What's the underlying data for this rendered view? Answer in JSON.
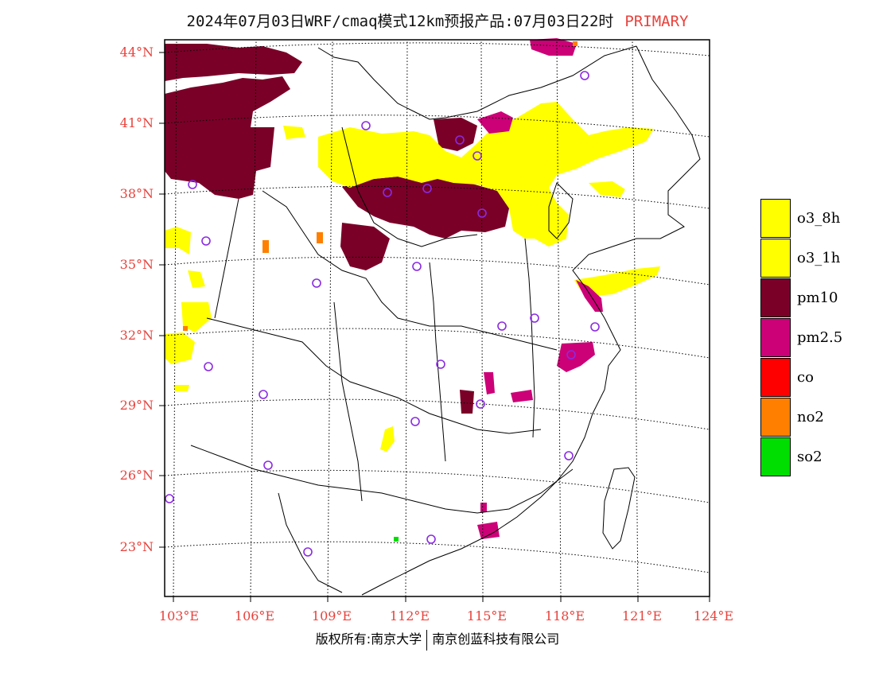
{
  "title": {
    "main": "2024年07月03日WRF/cmaq模式12km预报产品:07月03日22时",
    "tag": "PRIMARY"
  },
  "lat_labels": [
    "44°N",
    "41°N",
    "38°N",
    "35°N",
    "32°N",
    "29°N",
    "26°N",
    "23°N"
  ],
  "lon_labels": [
    "103°E",
    "106°E",
    "109°E",
    "112°E",
    "115°E",
    "118°E",
    "121°E",
    "124°E"
  ],
  "legend": [
    {
      "label": "o3_8h",
      "color": "#ffff00"
    },
    {
      "label": "o3_1h",
      "color": "#ffff00"
    },
    {
      "label": "pm10",
      "color": "#7a0028"
    },
    {
      "label": "pm2.5",
      "color": "#cc0077"
    },
    {
      "label": "co",
      "color": "#ff0000"
    },
    {
      "label": "no2",
      "color": "#ff7f00"
    },
    {
      "label": "so2",
      "color": "#00dd00"
    }
  ],
  "footer": {
    "left": "版权所有:南京大学",
    "right": "南京创蓝科技有限公司"
  },
  "colors": {
    "axis_label": "#e8423c",
    "station_marker": "#8a2be2"
  }
}
